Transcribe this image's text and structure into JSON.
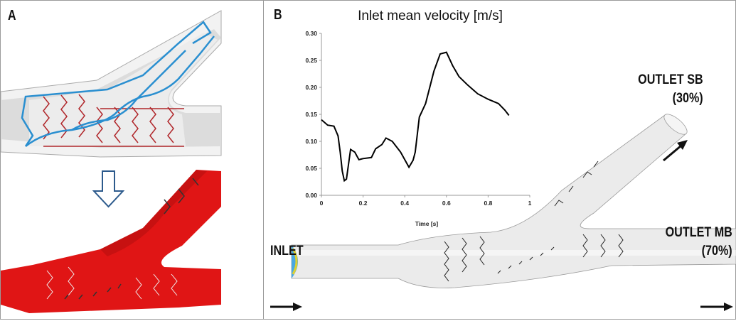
{
  "panels": {
    "a": {
      "label": "A"
    },
    "b": {
      "label": "B"
    }
  },
  "labels": {
    "inlet": "INLET",
    "outlet_sb": "OUTLET SB",
    "outlet_sb_pct": "(30%)",
    "outlet_mb": "OUTLET MB",
    "outlet_mb_pct": "(70%)"
  },
  "colors": {
    "stent_blue": "#2a8fd0",
    "stent_red": "#b0262a",
    "vessel_red": "#e01515",
    "vessel_grey": "#e6e6e6",
    "arrow_blue": "#2c5a8c"
  },
  "chart_data": {
    "type": "line",
    "title": "Inlet mean velocity [m/s]",
    "xlabel": "Time [s]",
    "ylabel": "",
    "xlim": [
      0,
      1
    ],
    "ylim": [
      0,
      0.3
    ],
    "xticks": [
      "0",
      "0.2",
      "0.4",
      "0.6",
      "0.8",
      "1"
    ],
    "yticks": [
      "0.00",
      "0.05",
      "0.10",
      "0.15",
      "0.20",
      "0.25",
      "0.30"
    ],
    "grid": false,
    "series": [
      {
        "x": [
          0,
          0.03,
          0.06,
          0.08,
          0.09,
          0.1,
          0.11,
          0.12,
          0.14,
          0.16,
          0.18,
          0.2,
          0.24,
          0.26,
          0.29,
          0.31,
          0.34,
          0.38,
          0.42,
          0.44,
          0.45,
          0.47,
          0.5,
          0.54,
          0.57,
          0.6,
          0.63,
          0.66,
          0.7,
          0.75,
          0.8,
          0.85,
          0.88,
          0.9
        ],
        "y": [
          0.14,
          0.13,
          0.128,
          0.11,
          0.08,
          0.045,
          0.027,
          0.03,
          0.085,
          0.08,
          0.066,
          0.068,
          0.07,
          0.086,
          0.094,
          0.106,
          0.1,
          0.08,
          0.052,
          0.065,
          0.08,
          0.145,
          0.17,
          0.23,
          0.262,
          0.265,
          0.24,
          0.22,
          0.205,
          0.188,
          0.178,
          0.17,
          0.158,
          0.148
        ]
      }
    ]
  }
}
